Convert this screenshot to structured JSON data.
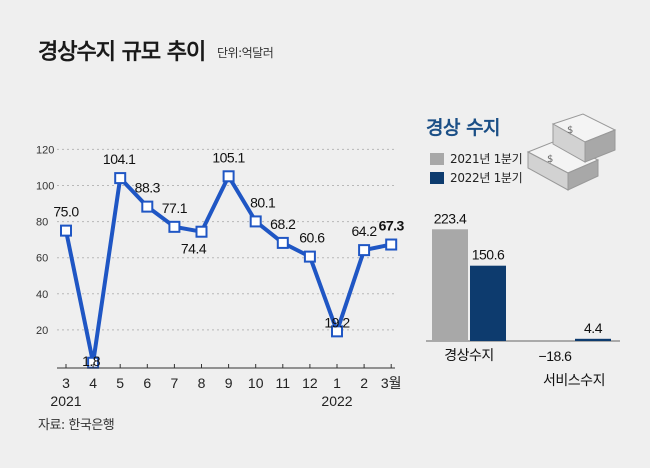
{
  "title": "경상수지 규모 추이",
  "unit_label": "단위:억달러",
  "source": "자료: 한국은행",
  "colors": {
    "line": "#1f56c4",
    "year2021": "#a8a8a8",
    "year2022": "#0d3b6e",
    "panel_title": "#1b4f86",
    "background": "#efefef"
  },
  "icon": "money-stack-icon",
  "chart_data": [
    {
      "type": "line",
      "title": "경상수지 규모 추이",
      "unit": "단위:억달러",
      "categories": [
        "3",
        "4",
        "5",
        "6",
        "7",
        "8",
        "9",
        "10",
        "11",
        "12",
        "1",
        "2",
        "3월"
      ],
      "year_labels": [
        {
          "label": "2021",
          "index": 0
        },
        {
          "label": "2022",
          "index": 10
        }
      ],
      "series": [
        {
          "values": [
            75.0,
            1.8,
            104.1,
            88.3,
            77.1,
            74.4,
            105.1,
            80.1,
            68.2,
            60.6,
            19.2,
            64.2,
            67.3
          ]
        }
      ],
      "data_labels": [
        "75.0",
        "1.8",
        "104.1",
        "88.3",
        "77.1",
        "74.4",
        "105.1",
        "80.1",
        "68.2",
        "60.6",
        "19.2",
        "64.2",
        "67.3"
      ],
      "highlight_last": true,
      "ylim": [
        0,
        120
      ],
      "yticks": [
        20,
        40,
        60,
        80,
        100,
        120
      ],
      "grid": "horizontal dotted"
    },
    {
      "type": "bar",
      "title": "경상 수지",
      "categories": [
        "경상수지",
        "서비스수지"
      ],
      "series": [
        {
          "name": "2021년 1분기",
          "values": [
            223.4,
            -18.6
          ],
          "labels": [
            "223.4",
            "−18.6"
          ]
        },
        {
          "name": "2022년 1분기",
          "values": [
            150.6,
            4.4
          ],
          "labels": [
            "150.6",
            "4.4"
          ]
        }
      ],
      "legend": "top"
    }
  ]
}
